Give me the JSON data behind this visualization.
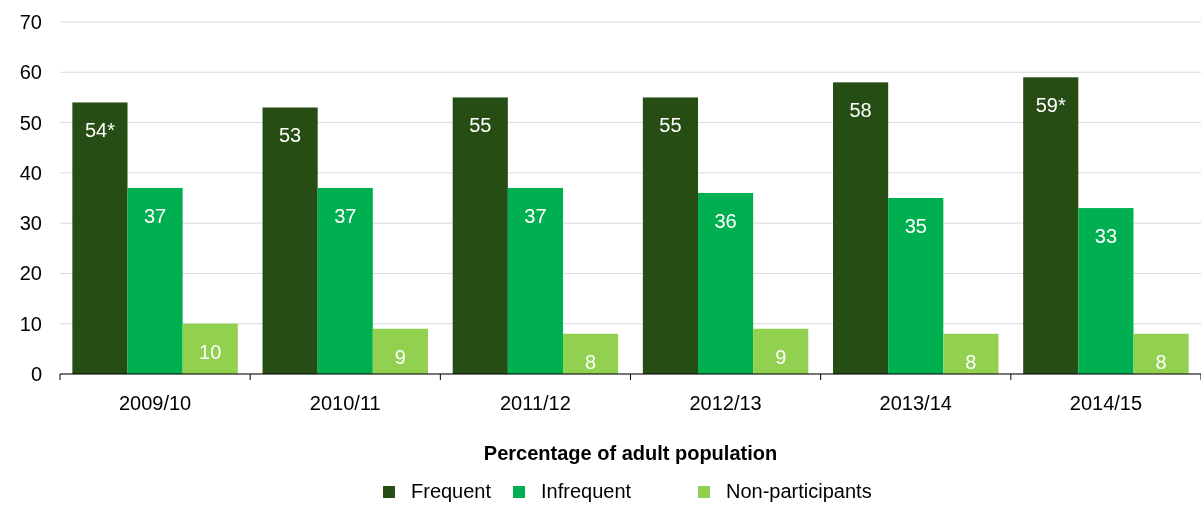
{
  "chart_data": {
    "type": "bar",
    "xlabel": "Percentage of adult population",
    "categories": [
      "2009/10",
      "2010/11",
      "2011/12",
      "2012/13",
      "2013/14",
      "2014/15"
    ],
    "series": [
      {
        "name": "Frequent",
        "color": "#264d13",
        "values": [
          54,
          53,
          55,
          55,
          58,
          59
        ],
        "value_labels": [
          "54*",
          "53",
          "55",
          "55",
          "58",
          "59*"
        ]
      },
      {
        "name": "Infrequent",
        "color": "#00b050",
        "values": [
          37,
          37,
          37,
          36,
          35,
          33
        ],
        "value_labels": [
          "37",
          "37",
          "37",
          "36",
          "35",
          "33"
        ]
      },
      {
        "name": "Non-participants",
        "color": "#92d050",
        "values": [
          10,
          9,
          8,
          9,
          8,
          8
        ],
        "value_labels": [
          "10",
          "9",
          "8",
          "9",
          "8",
          "8"
        ]
      }
    ],
    "ylim": [
      0,
      70
    ],
    "yticks": [
      0,
      10,
      20,
      30,
      40,
      50,
      60,
      70
    ],
    "grid": "y",
    "legend": "bottom"
  }
}
